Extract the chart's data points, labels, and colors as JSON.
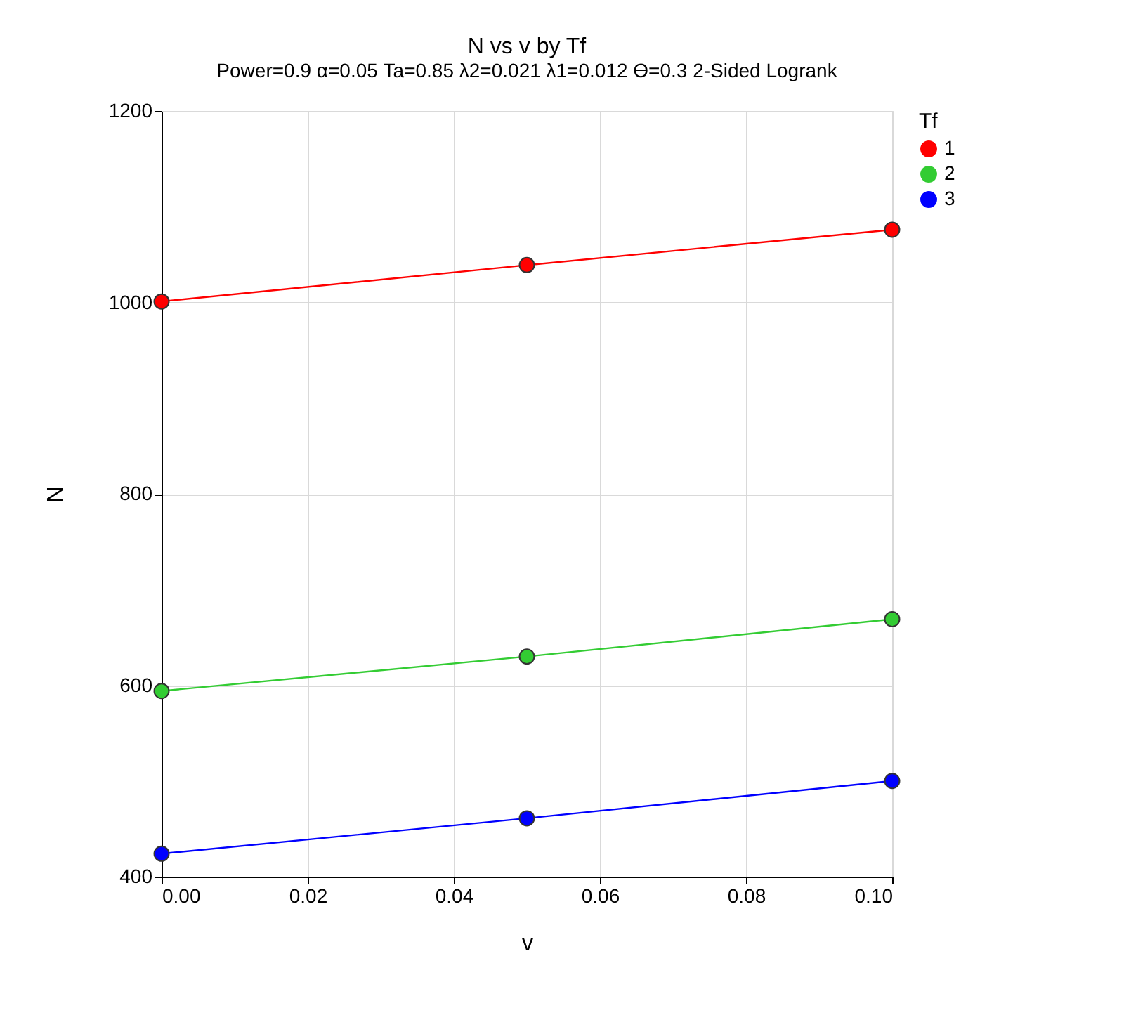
{
  "chart_data": {
    "type": "line",
    "title": "N vs v by Tf",
    "subtitle": "Power=0.9 α=0.05 Ta=0.85 λ2=0.021 λ1=0.012 ϴ=0.3 2-Sided Logrank",
    "xlabel": "v",
    "ylabel": "N",
    "legend_title": "Tf",
    "x": [
      0,
      0.05,
      0.1
    ],
    "series": [
      {
        "name": "1",
        "color": "#ff0000",
        "values": [
          1001,
          1039,
          1076
        ]
      },
      {
        "name": "2",
        "color": "#33cc33",
        "values": [
          594,
          630,
          669
        ]
      },
      {
        "name": "3",
        "color": "#0000ff",
        "values": [
          424,
          461,
          500
        ]
      }
    ],
    "xlim": [
      0,
      0.1
    ],
    "xticks": [
      {
        "value": 0,
        "label": "0.00"
      },
      {
        "value": 0.02,
        "label": "0.02"
      },
      {
        "value": 0.04,
        "label": "0.04"
      },
      {
        "value": 0.06,
        "label": "0.06"
      },
      {
        "value": 0.08,
        "label": "0.08"
      },
      {
        "value": 0.1,
        "label": "0.10"
      }
    ],
    "ylim": [
      400,
      1200
    ],
    "yticks": [
      400,
      600,
      800,
      1000,
      1200
    ],
    "grid": true,
    "legend": "right",
    "marker": "circle",
    "line_style": "solid"
  }
}
